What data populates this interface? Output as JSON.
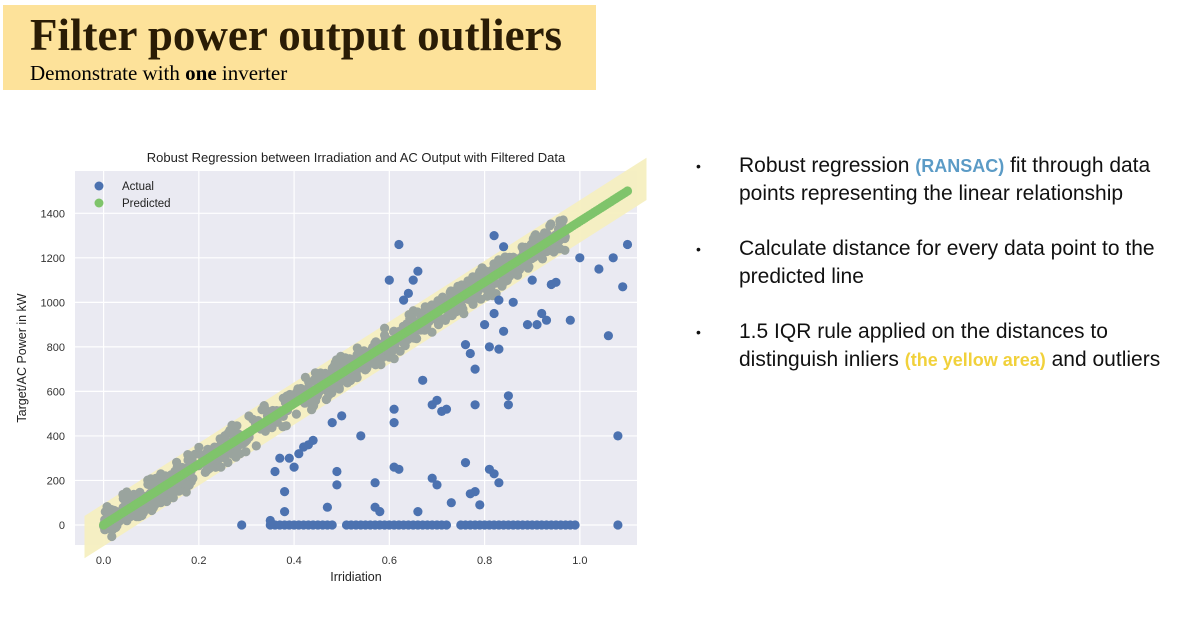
{
  "slide": {
    "title": "Filter power output outliers",
    "subtitle_pre": "Demonstrate with ",
    "subtitle_bold": "one",
    "subtitle_post": " inverter"
  },
  "bullets": [
    {
      "pre": "Robust regression ",
      "hl": "(RANSAC)",
      "hl_color": "#5b9bc6",
      "post": " fit through data points representing the linear relationship"
    },
    {
      "pre": "Calculate distance for every data point to the predicted line",
      "hl": "",
      "hl_color": "",
      "post": ""
    },
    {
      "pre": "1.5 IQR rule applied on the distances to distinguish inliers ",
      "hl": "(the yellow area)",
      "hl_color": "#f1d13b",
      "post": " and outliers"
    }
  ],
  "colors": {
    "title_bg": "#fde29a",
    "plot_bg": "#eaeaf2",
    "actual": "#4c72b0",
    "predicted": "#7fc46b",
    "inlier_points": "#9aa49e",
    "inlier_band": "#f6efc0"
  },
  "chart_data": {
    "type": "scatter",
    "title": "Robust Regression between Irradiation and AC Output with Filtered Data",
    "xlabel": "Irridiation",
    "ylabel": "Target/AC Power in kW",
    "xlim": [
      -0.06,
      1.12
    ],
    "ylim": [
      -90,
      1590
    ],
    "xticks": [
      0.0,
      0.2,
      0.4,
      0.6,
      0.8,
      1.0
    ],
    "xtick_labels": [
      "0.0",
      "0.2",
      "0.4",
      "0.6",
      "0.8",
      "1.0"
    ],
    "yticks": [
      0,
      200,
      400,
      600,
      800,
      1000,
      1200,
      1400
    ],
    "ytick_labels": [
      "0",
      "200",
      "400",
      "600",
      "800",
      "1000",
      "1200",
      "1400"
    ],
    "grid": true,
    "legend_position": "top-left",
    "inlier_band_halfwidth": 95,
    "series": [
      {
        "name": "Actual",
        "color": "#4c72b0",
        "points": [
          [
            0.29,
            0
          ],
          [
            0.35,
            0
          ],
          [
            0.36,
            0
          ],
          [
            0.37,
            0
          ],
          [
            0.38,
            0
          ],
          [
            0.39,
            0
          ],
          [
            0.4,
            0
          ],
          [
            0.41,
            0
          ],
          [
            0.42,
            0
          ],
          [
            0.43,
            0
          ],
          [
            0.44,
            0
          ],
          [
            0.45,
            0
          ],
          [
            0.46,
            0
          ],
          [
            0.47,
            0
          ],
          [
            0.48,
            0
          ],
          [
            0.51,
            0
          ],
          [
            0.52,
            0
          ],
          [
            0.53,
            0
          ],
          [
            0.54,
            0
          ],
          [
            0.55,
            0
          ],
          [
            0.56,
            0
          ],
          [
            0.57,
            0
          ],
          [
            0.58,
            0
          ],
          [
            0.59,
            0
          ],
          [
            0.6,
            0
          ],
          [
            0.61,
            0
          ],
          [
            0.62,
            0
          ],
          [
            0.63,
            0
          ],
          [
            0.64,
            0
          ],
          [
            0.65,
            0
          ],
          [
            0.66,
            0
          ],
          [
            0.67,
            0
          ],
          [
            0.68,
            0
          ],
          [
            0.69,
            0
          ],
          [
            0.7,
            0
          ],
          [
            0.71,
            0
          ],
          [
            0.72,
            0
          ],
          [
            0.75,
            0
          ],
          [
            0.76,
            0
          ],
          [
            0.77,
            0
          ],
          [
            0.78,
            0
          ],
          [
            0.79,
            0
          ],
          [
            0.8,
            0
          ],
          [
            0.81,
            0
          ],
          [
            0.82,
            0
          ],
          [
            0.83,
            0
          ],
          [
            0.84,
            0
          ],
          [
            0.85,
            0
          ],
          [
            0.86,
            0
          ],
          [
            0.87,
            0
          ],
          [
            0.88,
            0
          ],
          [
            0.89,
            0
          ],
          [
            0.9,
            0
          ],
          [
            0.91,
            0
          ],
          [
            0.92,
            0
          ],
          [
            0.93,
            0
          ],
          [
            0.94,
            0
          ],
          [
            0.95,
            0
          ],
          [
            0.96,
            0
          ],
          [
            0.97,
            0
          ],
          [
            0.98,
            0
          ],
          [
            0.99,
            0
          ],
          [
            1.08,
            0
          ],
          [
            0.35,
            20
          ],
          [
            0.38,
            60
          ],
          [
            0.47,
            80
          ],
          [
            0.57,
            80
          ],
          [
            0.58,
            60
          ],
          [
            0.66,
            60
          ],
          [
            0.79,
            90
          ],
          [
            0.38,
            150
          ],
          [
            0.36,
            240
          ],
          [
            0.37,
            300
          ],
          [
            0.39,
            300
          ],
          [
            0.41,
            320
          ],
          [
            0.42,
            350
          ],
          [
            0.43,
            360
          ],
          [
            0.4,
            260
          ],
          [
            0.44,
            380
          ],
          [
            0.49,
            180
          ],
          [
            0.49,
            240
          ],
          [
            0.57,
            190
          ],
          [
            0.61,
            260
          ],
          [
            0.62,
            250
          ],
          [
            0.69,
            210
          ],
          [
            0.7,
            180
          ],
          [
            0.73,
            100
          ],
          [
            0.76,
            280
          ],
          [
            0.77,
            140
          ],
          [
            0.78,
            150
          ],
          [
            0.81,
            250
          ],
          [
            0.82,
            230
          ],
          [
            0.83,
            190
          ],
          [
            0.48,
            460
          ],
          [
            0.5,
            490
          ],
          [
            0.54,
            400
          ],
          [
            0.61,
            460
          ],
          [
            0.61,
            520
          ],
          [
            0.67,
            650
          ],
          [
            0.69,
            540
          ],
          [
            0.7,
            560
          ],
          [
            0.71,
            510
          ],
          [
            0.72,
            520
          ],
          [
            0.78,
            540
          ],
          [
            0.8,
            900
          ],
          [
            0.81,
            800
          ],
          [
            0.83,
            790
          ],
          [
            0.84,
            870
          ],
          [
            0.85,
            580
          ],
          [
            0.85,
            540
          ],
          [
            0.76,
            810
          ],
          [
            0.77,
            770
          ],
          [
            0.78,
            700
          ],
          [
            0.82,
            950
          ],
          [
            0.83,
            1010
          ],
          [
            0.86,
            1000
          ],
          [
            0.89,
            900
          ],
          [
            0.9,
            1100
          ],
          [
            0.91,
            900
          ],
          [
            0.92,
            950
          ],
          [
            0.93,
            920
          ],
          [
            0.94,
            1080
          ],
          [
            0.95,
            1090
          ],
          [
            0.98,
            920
          ],
          [
            0.63,
            1010
          ],
          [
            0.64,
            1040
          ],
          [
            0.65,
            1100
          ],
          [
            0.66,
            1140
          ],
          [
            0.6,
            1100
          ],
          [
            0.62,
            1260
          ],
          [
            0.82,
            1300
          ],
          [
            0.84,
            1250
          ],
          [
            1.0,
            1200
          ],
          [
            1.04,
            1150
          ],
          [
            1.07,
            1200
          ],
          [
            1.1,
            1260
          ],
          [
            1.09,
            1070
          ],
          [
            1.06,
            850
          ],
          [
            1.08,
            400
          ]
        ]
      },
      {
        "name": "Predicted",
        "color": "#7fc46b",
        "x_start": 0.0,
        "x_end": 1.1,
        "y_start": 0,
        "y_end": 1500
      }
    ]
  }
}
